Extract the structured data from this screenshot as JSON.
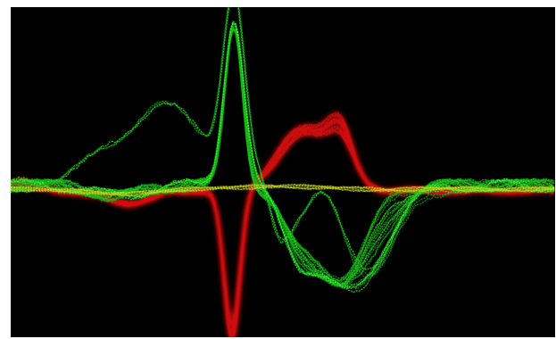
{
  "image": {
    "description_colors": {
      "background": "#000000",
      "frame": "#ffffff",
      "green": "#18b818",
      "bright_green": "#3cff3c",
      "red": "#d01010",
      "yellow": "#c8d820"
    },
    "trace_groups": {
      "green_trace_count": 26,
      "red_trace_count": 22,
      "yellow_trace_count": 6
    }
  }
}
